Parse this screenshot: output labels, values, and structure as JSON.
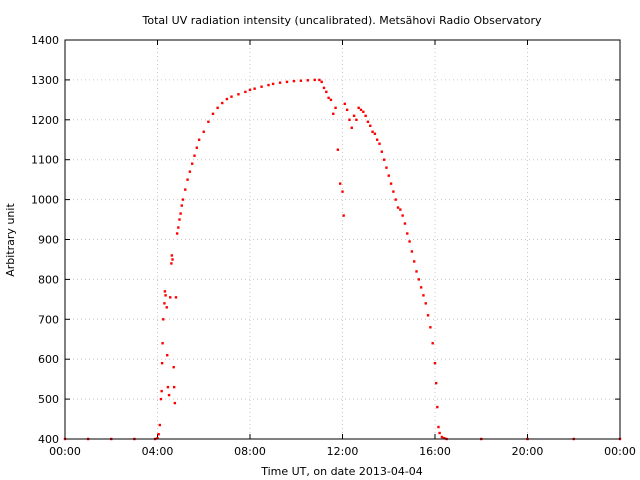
{
  "chart_data": {
    "type": "scatter",
    "title": "Total UV radiation intensity (uncalibrated). Metsähovi Radio Observatory",
    "xlabel": "Time UT, on date 2013-04-04",
    "ylabel": "Arbitrary unit",
    "xlim": [
      0,
      24
    ],
    "ylim": [
      400,
      1400
    ],
    "x_ticks": [
      0,
      4,
      8,
      12,
      16,
      20,
      24
    ],
    "x_tick_labels": [
      "00:00",
      "04:00",
      "08:00",
      "12:00",
      "16:00",
      "20:00",
      "00:00"
    ],
    "y_ticks": [
      400,
      500,
      600,
      700,
      800,
      900,
      1000,
      1100,
      1200,
      1300,
      1400
    ],
    "y_tick_labels": [
      "400",
      "500",
      "600",
      "700",
      "800",
      "900",
      "1000",
      "1100",
      "1200",
      "1300",
      "1400"
    ],
    "grid": true,
    "x_unit": "hours UT",
    "colors": {
      "series": "#ff0000",
      "grid": "#c8c8c8",
      "axis": "#000000"
    },
    "series": [
      {
        "values_x_y": [
          [
            0.0,
            400
          ],
          [
            1.0,
            400
          ],
          [
            2.0,
            400
          ],
          [
            3.0,
            400
          ],
          [
            3.9,
            400
          ],
          [
            4.0,
            402
          ],
          [
            4.05,
            412
          ],
          [
            4.1,
            435
          ],
          [
            4.15,
            500
          ],
          [
            4.18,
            520
          ],
          [
            4.2,
            590
          ],
          [
            4.22,
            640
          ],
          [
            4.25,
            700
          ],
          [
            4.3,
            740
          ],
          [
            4.32,
            770
          ],
          [
            4.35,
            760
          ],
          [
            4.4,
            730
          ],
          [
            4.42,
            610
          ],
          [
            4.45,
            530
          ],
          [
            4.5,
            510
          ],
          [
            4.55,
            755
          ],
          [
            4.6,
            840
          ],
          [
            4.62,
            860
          ],
          [
            4.65,
            850
          ],
          [
            4.7,
            580
          ],
          [
            4.72,
            530
          ],
          [
            4.75,
            490
          ],
          [
            4.8,
            755
          ],
          [
            4.85,
            915
          ],
          [
            4.9,
            930
          ],
          [
            4.95,
            950
          ],
          [
            5.0,
            965
          ],
          [
            5.05,
            985
          ],
          [
            5.1,
            1000
          ],
          [
            5.2,
            1025
          ],
          [
            5.3,
            1050
          ],
          [
            5.4,
            1070
          ],
          [
            5.5,
            1090
          ],
          [
            5.6,
            1110
          ],
          [
            5.7,
            1130
          ],
          [
            5.8,
            1150
          ],
          [
            6.0,
            1170
          ],
          [
            6.2,
            1195
          ],
          [
            6.4,
            1215
          ],
          [
            6.6,
            1230
          ],
          [
            6.8,
            1242
          ],
          [
            7.0,
            1252
          ],
          [
            7.2,
            1258
          ],
          [
            7.5,
            1264
          ],
          [
            7.8,
            1270
          ],
          [
            8.0,
            1275
          ],
          [
            8.2,
            1278
          ],
          [
            8.5,
            1283
          ],
          [
            8.8,
            1287
          ],
          [
            9.0,
            1290
          ],
          [
            9.3,
            1293
          ],
          [
            9.6,
            1295
          ],
          [
            9.9,
            1297
          ],
          [
            10.2,
            1298
          ],
          [
            10.5,
            1299
          ],
          [
            10.8,
            1300
          ],
          [
            11.0,
            1300
          ],
          [
            11.1,
            1295
          ],
          [
            11.2,
            1280
          ],
          [
            11.3,
            1270
          ],
          [
            11.4,
            1255
          ],
          [
            11.5,
            1250
          ],
          [
            11.6,
            1215
          ],
          [
            11.7,
            1230
          ],
          [
            11.8,
            1125
          ],
          [
            11.9,
            1040
          ],
          [
            12.0,
            1020
          ],
          [
            12.05,
            960
          ],
          [
            12.1,
            1240
          ],
          [
            12.2,
            1225
          ],
          [
            12.3,
            1200
          ],
          [
            12.4,
            1180
          ],
          [
            12.5,
            1210
          ],
          [
            12.6,
            1200
          ],
          [
            12.7,
            1230
          ],
          [
            12.8,
            1225
          ],
          [
            12.9,
            1220
          ],
          [
            13.0,
            1210
          ],
          [
            13.1,
            1195
          ],
          [
            13.2,
            1185
          ],
          [
            13.3,
            1170
          ],
          [
            13.4,
            1165
          ],
          [
            13.5,
            1150
          ],
          [
            13.6,
            1140
          ],
          [
            13.7,
            1120
          ],
          [
            13.8,
            1100
          ],
          [
            13.9,
            1080
          ],
          [
            14.0,
            1060
          ],
          [
            14.1,
            1040
          ],
          [
            14.2,
            1020
          ],
          [
            14.3,
            1000
          ],
          [
            14.4,
            980
          ],
          [
            14.5,
            975
          ],
          [
            14.6,
            960
          ],
          [
            14.7,
            940
          ],
          [
            14.8,
            915
          ],
          [
            14.9,
            895
          ],
          [
            15.0,
            870
          ],
          [
            15.1,
            845
          ],
          [
            15.2,
            820
          ],
          [
            15.3,
            800
          ],
          [
            15.4,
            780
          ],
          [
            15.5,
            760
          ],
          [
            15.6,
            740
          ],
          [
            15.7,
            710
          ],
          [
            15.8,
            680
          ],
          [
            15.9,
            640
          ],
          [
            16.0,
            590
          ],
          [
            16.05,
            540
          ],
          [
            16.1,
            480
          ],
          [
            16.15,
            430
          ],
          [
            16.2,
            415
          ],
          [
            16.3,
            405
          ],
          [
            16.4,
            402
          ],
          [
            16.5,
            400
          ],
          [
            18.0,
            400
          ],
          [
            20.0,
            400
          ],
          [
            22.0,
            400
          ],
          [
            24.0,
            400
          ]
        ]
      }
    ]
  }
}
